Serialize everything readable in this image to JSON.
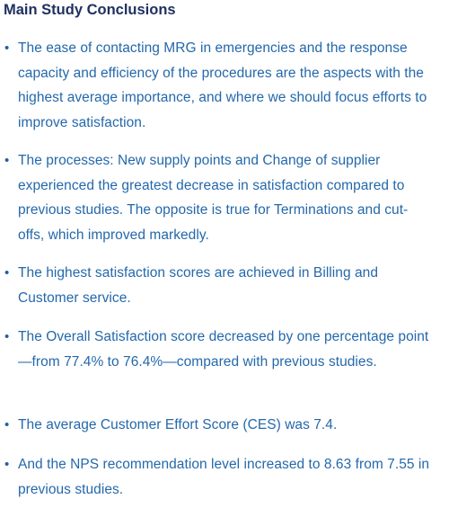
{
  "heading": "Main Study Conclusions",
  "bullet_symbol": "•",
  "conclusions": [
    "The ease of contacting MRG in emergencies and the response capacity and efficiency of the procedures are the aspects with the highest average importance, and where we should focus efforts to improve satisfaction.",
    "The processes: New supply points and Change of supplier experienced the greatest decrease in satisfaction compared to previous studies. The opposite is true for Terminations and cut-offs, which improved markedly.",
    "The highest satisfaction scores are achieved in Billing and Customer service.",
    "The Overall Satisfaction score decreased by one percentage point—from 77.4% to 76.4%—compared with previous studies.",
    "The average Customer Effort Score (CES) was 7.4.",
    "And the NPS recommendation level increased to 8.63 from 7.55 in previous studies."
  ],
  "colors": {
    "heading": "#1f3160",
    "text": "#2468ab",
    "bullet": "#1f5fa5"
  }
}
